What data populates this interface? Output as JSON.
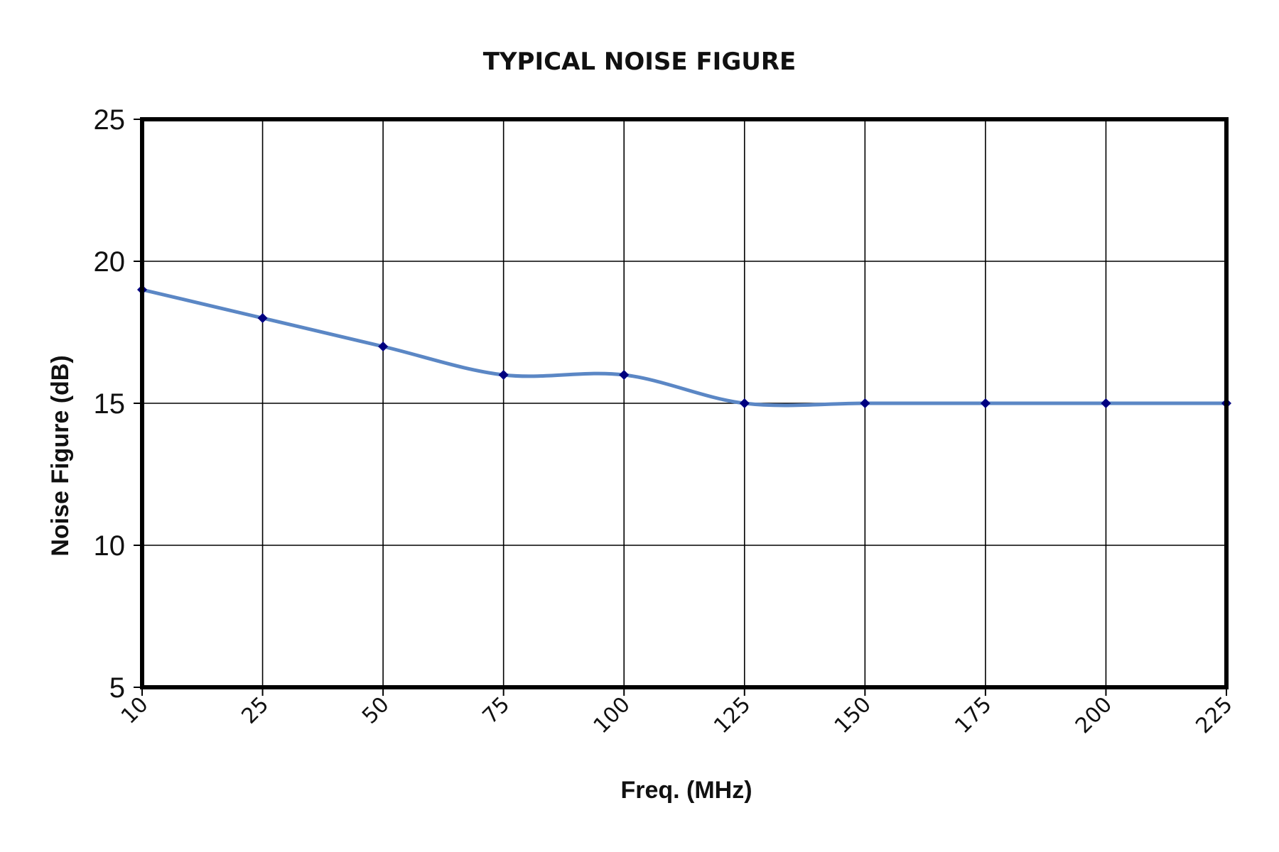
{
  "chart_data": {
    "type": "line",
    "title": "TYPICAL NOISE FIGURE",
    "xlabel": "Freq. (MHz)",
    "ylabel": "Noise Figure (dB)",
    "categories": [
      "10",
      "25",
      "50",
      "75",
      "100",
      "125",
      "150",
      "175",
      "200",
      "225"
    ],
    "series": [
      {
        "values": [
          19,
          18,
          17,
          16,
          16,
          15,
          15,
          15,
          15,
          15
        ],
        "color": "#5b87c5",
        "marker_color": "#000080"
      }
    ],
    "ylim": [
      5,
      25
    ],
    "yticks": [
      5,
      10,
      15,
      20,
      25
    ],
    "x_axis_scale": "categorical",
    "x_tick_rotation": "-45deg",
    "grid": true,
    "legend": "none",
    "smooth": true
  }
}
